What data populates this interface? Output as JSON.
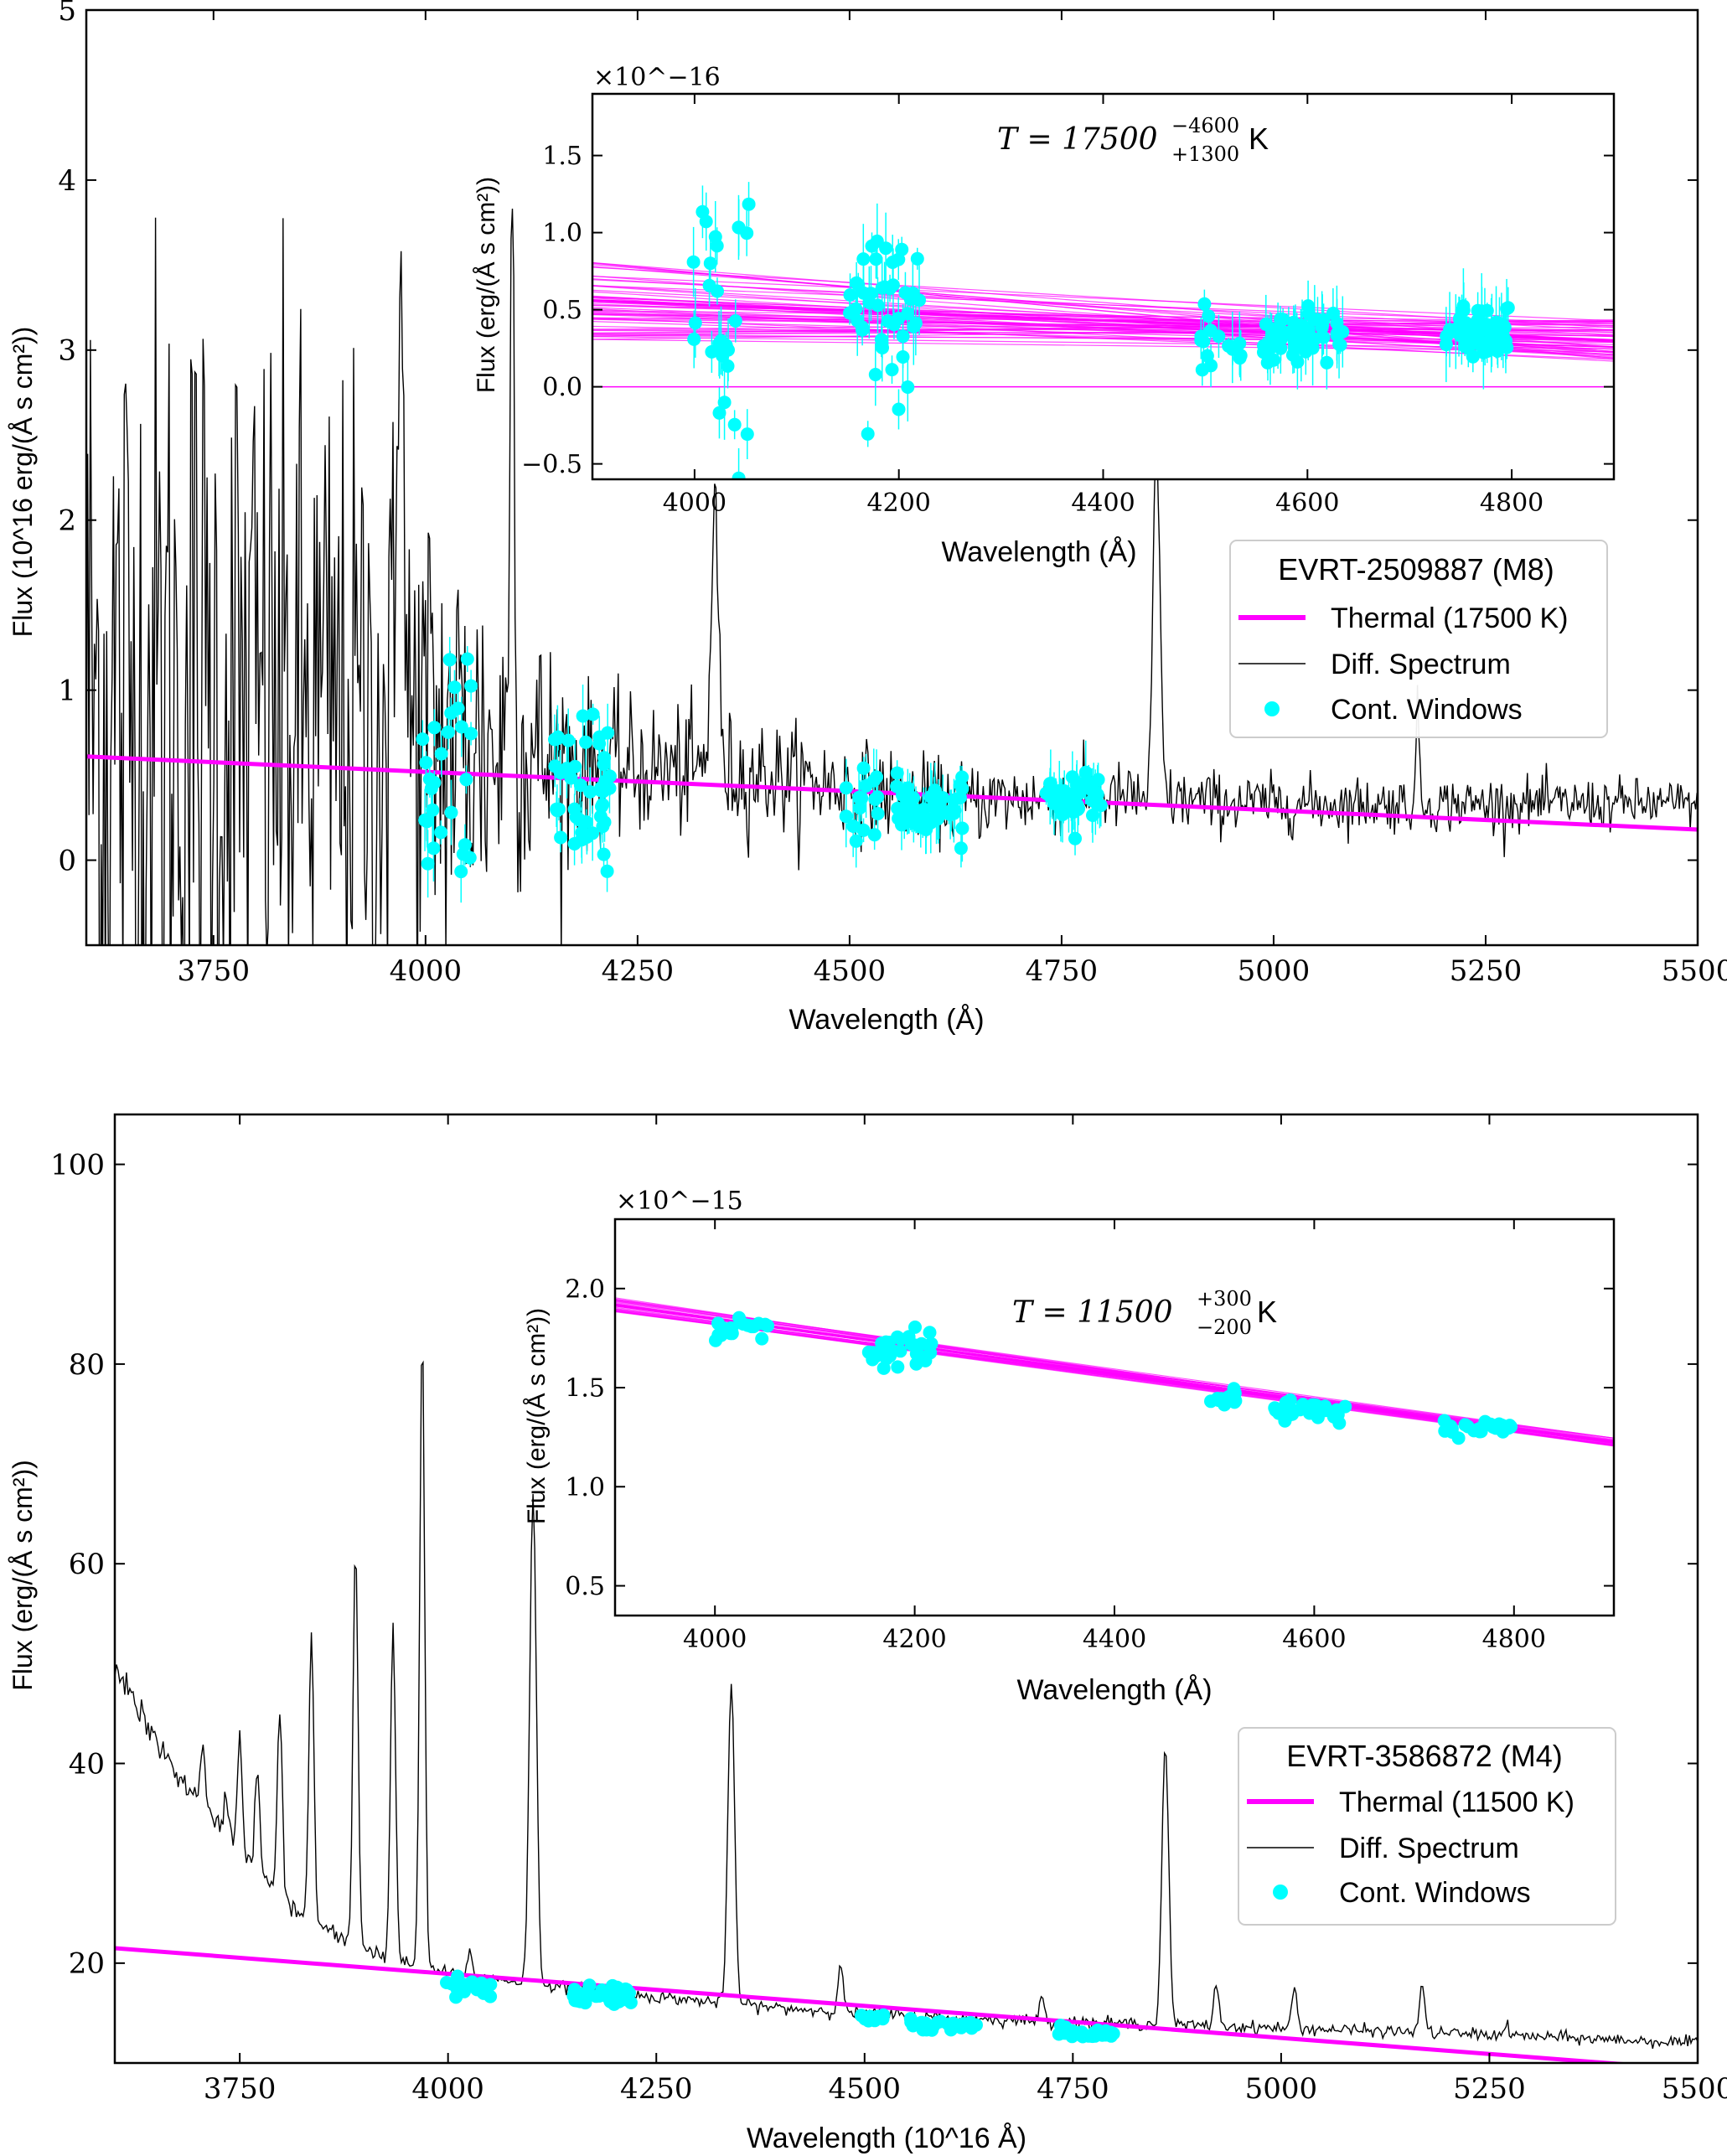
{
  "colors": {
    "thermal": "#ff00ff",
    "windows": "#00ffff",
    "spectrum": "#000000",
    "axis": "#000000"
  },
  "chart_data": [
    {
      "type": "line",
      "panel": "top-main",
      "xlabel": "Wavelength (Å)",
      "ylabel": "Flux (10^16 erg/(Å s cm²))",
      "xlim": [
        3600,
        5500
      ],
      "ylim": [
        -0.5,
        5.0
      ],
      "xticks": [
        "3750",
        "4000",
        "4250",
        "4500",
        "4750",
        "5000",
        "5250",
        "5500"
      ],
      "yticks": [
        "0",
        "1",
        "2",
        "3",
        "4",
        "5"
      ],
      "legend": {
        "position": "right",
        "title": "EVRT-2509887 (M8)",
        "entries": [
          "Thermal (17500 K)",
          "Diff. Spectrum",
          "Cont. Windows"
        ]
      },
      "thermal": {
        "x": [
          3600,
          5500
        ],
        "y": [
          0.61,
          0.18
        ]
      },
      "spectrum_profile": {
        "continuum_x": [
          3600,
          3800,
          4000,
          4200,
          4400,
          4600,
          4800,
          5000,
          5200,
          5500
        ],
        "continuum_y": [
          0.9,
          0.9,
          0.72,
          0.55,
          0.5,
          0.35,
          0.37,
          0.33,
          0.33,
          0.33
        ],
        "noise_x": [
          3600,
          3950,
          4200,
          4600,
          5000,
          5500
        ],
        "noise_y": [
          2.6,
          1.6,
          0.35,
          0.2,
          0.14,
          0.12
        ],
        "emission_lines": [
          {
            "x": 3970,
            "peak": 4.6,
            "width": 3
          },
          {
            "x": 4102,
            "peak": 3.7,
            "width": 3
          },
          {
            "x": 4341,
            "peak": 2.2,
            "width": 4
          },
          {
            "x": 4862,
            "peak": 2.4,
            "width": 4
          },
          {
            "x": 5170,
            "peak": 0.85,
            "width": 2
          }
        ]
      },
      "windows": [
        {
          "center": 4025,
          "halfwidth": 30,
          "mean": 0.55,
          "spread": 0.9,
          "count": 28
        },
        {
          "center": 4185,
          "halfwidth": 35,
          "mean": 0.5,
          "spread": 0.6,
          "count": 45
        },
        {
          "center": 4515,
          "halfwidth": 20,
          "mean": 0.3,
          "spread": 0.3,
          "count": 16
        },
        {
          "center": 4595,
          "halfwidth": 40,
          "mean": 0.32,
          "spread": 0.2,
          "count": 55
        },
        {
          "center": 4765,
          "halfwidth": 35,
          "mean": 0.35,
          "spread": 0.18,
          "count": 50
        }
      ]
    },
    {
      "type": "scatter",
      "panel": "top-inset",
      "xlabel": "Wavelength (Å)",
      "ylabel": "Flux (erg/(Å s cm²))",
      "offset_label": "×10^−16",
      "annotation": "T = 17500 (−4600/+1300) K",
      "annotation_main": "T = 17500",
      "annotation_sup": "−4600",
      "annotation_sub": "+1300",
      "annotation_unit": "K",
      "xlim": [
        3900,
        4900
      ],
      "ylim": [
        -0.6,
        1.9
      ],
      "xticks": [
        "4000",
        "4200",
        "4400",
        "4600",
        "4800"
      ],
      "yticks": [
        "−0.5",
        "0.0",
        "0.5",
        "1.0",
        "1.5"
      ],
      "best_fit": {
        "x": [
          3900,
          4900
        ],
        "y": [
          0.56,
          0.3
        ]
      },
      "fit_band": {
        "x": [
          3900,
          4900
        ],
        "upper": [
          0.76,
          0.45
        ],
        "lower": [
          0.25,
          0.18
        ]
      },
      "zero_line": 0.0
    },
    {
      "type": "line",
      "panel": "bottom-main",
      "xlabel": "Wavelength (10^16 Å)",
      "ylabel": "Flux (erg/(Å s cm²))",
      "xlim": [
        3600,
        5500
      ],
      "ylim": [
        10,
        105
      ],
      "xticks": [
        "3750",
        "4000",
        "4250",
        "4500",
        "4750",
        "5000",
        "5250",
        "5500"
      ],
      "yticks": [
        "20",
        "40",
        "60",
        "80",
        "100"
      ],
      "legend": {
        "position": "right",
        "title": "EVRT-3586872 (M4)",
        "entries": [
          "Thermal (11500 K)",
          "Diff. Spectrum",
          "Cont. Windows"
        ]
      },
      "thermal": {
        "x": [
          3600,
          5500
        ],
        "y": [
          21.5,
          9.3
        ]
      },
      "spectrum_profile": {
        "continuum_x": [
          3600,
          3650,
          3700,
          3760,
          3820,
          3880,
          3950,
          4000,
          4100,
          4200,
          4400,
          4600,
          4800,
          5000,
          5200,
          5500
        ],
        "continuum_y": [
          50,
          42,
          36,
          30,
          25,
          22,
          20,
          19,
          18,
          17,
          15.5,
          14.5,
          14,
          13.5,
          13,
          12
        ],
        "noise_x": [
          3600,
          4000,
          5500
        ],
        "noise_y": [
          1.2,
          0.5,
          0.5
        ],
        "emission_lines": [
          {
            "x": 3705,
            "peak": 42,
            "width": 3
          },
          {
            "x": 3734,
            "peak": 37,
            "width": 3
          },
          {
            "x": 3750,
            "peak": 43,
            "width": 3
          },
          {
            "x": 3771,
            "peak": 39,
            "width": 3
          },
          {
            "x": 3798,
            "peak": 45,
            "width": 3
          },
          {
            "x": 3836,
            "peak": 53,
            "width": 3
          },
          {
            "x": 3889,
            "peak": 62,
            "width": 3
          },
          {
            "x": 3934,
            "peak": 54,
            "width": 3
          },
          {
            "x": 3969,
            "peak": 83,
            "width": 3
          },
          {
            "x": 4026,
            "peak": 21,
            "width": 3
          },
          {
            "x": 4102,
            "peak": 67,
            "width": 4
          },
          {
            "x": 4340,
            "peak": 48,
            "width": 4
          },
          {
            "x": 4471,
            "peak": 20,
            "width": 3
          },
          {
            "x": 4713,
            "peak": 16.5,
            "width": 3
          },
          {
            "x": 4861,
            "peak": 42,
            "width": 4
          },
          {
            "x": 4922,
            "peak": 18,
            "width": 3
          },
          {
            "x": 5016,
            "peak": 17.5,
            "width": 3
          },
          {
            "x": 5169,
            "peak": 18,
            "width": 3
          },
          {
            "x": 5270,
            "peak": 14,
            "width": 2
          }
        ]
      },
      "windows": [
        {
          "center": 4025,
          "halfwidth": 30,
          "mean": 17.9,
          "spread": 1.1,
          "count": 18
        },
        {
          "center": 4185,
          "halfwidth": 35,
          "mean": 16.9,
          "spread": 1.2,
          "count": 30
        },
        {
          "center": 4510,
          "halfwidth": 15,
          "mean": 14.5,
          "spread": 0.4,
          "count": 12
        },
        {
          "center": 4595,
          "halfwidth": 40,
          "mean": 13.9,
          "spread": 0.6,
          "count": 28
        },
        {
          "center": 4765,
          "halfwidth": 35,
          "mean": 13.0,
          "spread": 0.5,
          "count": 30
        }
      ]
    },
    {
      "type": "scatter",
      "panel": "bottom-inset",
      "xlabel": "Wavelength (Å)",
      "ylabel": "Flux (erg/(Å s cm²))",
      "offset_label": "×10^−15",
      "annotation": "T = 11500 (+300/−200) K",
      "annotation_main": "T = 11500",
      "annotation_sup": "+300",
      "annotation_sub": "−200",
      "annotation_unit": "K",
      "xlim": [
        3900,
        4900
      ],
      "ylim": [
        0.35,
        2.35
      ],
      "xticks": [
        "4000",
        "4200",
        "4400",
        "4600",
        "4800"
      ],
      "yticks": [
        "0.5",
        "1.0",
        "1.5",
        "2.0"
      ],
      "best_fit": {
        "x": [
          3900,
          4900
        ],
        "y": [
          1.915,
          1.225
        ]
      },
      "fit_band": {
        "x": [
          3900,
          4900
        ],
        "upper": [
          1.96,
          1.25
        ],
        "lower": [
          1.87,
          1.2
        ]
      }
    }
  ]
}
